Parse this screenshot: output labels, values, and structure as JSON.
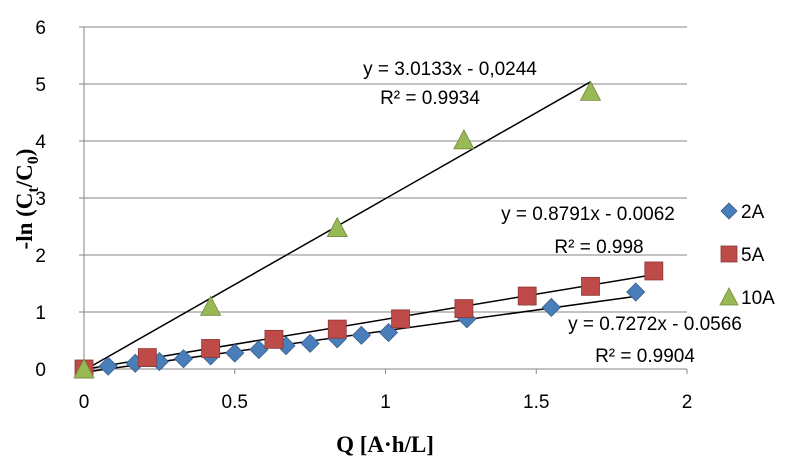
{
  "chart_data": {
    "type": "scatter",
    "xlabel": "Q [A·h/L]",
    "ylabel": "-ln (Ct/C0)",
    "ylabel_parts": {
      "pre": "-ln (C",
      "sub1": "t",
      "mid": "/C",
      "sub2": "0",
      "post": ")"
    },
    "xlim": [
      0,
      2
    ],
    "ylim": [
      0,
      6
    ],
    "xticks": [
      0,
      0.5,
      1,
      1.5,
      2
    ],
    "xtick_labels": [
      "0",
      "0.5",
      "1",
      "1.5",
      "2"
    ],
    "yticks": [
      0,
      1,
      2,
      3,
      4,
      5,
      6
    ],
    "ytick_labels": [
      "0",
      "1",
      "2",
      "3",
      "4",
      "5",
      "6"
    ],
    "grid": "horizontal",
    "legend_position": "right",
    "series": [
      {
        "name": "2A",
        "marker": "diamond",
        "color": "#4A7EBB",
        "x": [
          0,
          0.08,
          0.17,
          0.25,
          0.33,
          0.42,
          0.5,
          0.58,
          0.67,
          0.75,
          0.84,
          0.92,
          1.01,
          1.27,
          1.55,
          1.83
        ],
        "y": [
          0,
          0.05,
          0.1,
          0.13,
          0.18,
          0.23,
          0.28,
          0.34,
          0.41,
          0.45,
          0.53,
          0.59,
          0.64,
          0.88,
          1.08,
          1.35
        ],
        "trendline": {
          "slope": 0.7272,
          "intercept": -0.0566,
          "x_range": [
            0,
            1.83
          ]
        },
        "equation": "y = 0.7272x - 0.0566",
        "r2": "R² = 0.9904"
      },
      {
        "name": "5A",
        "marker": "square",
        "color": "#BE4B48",
        "x": [
          0,
          0.21,
          0.42,
          0.63,
          0.84,
          1.05,
          1.26,
          1.47,
          1.68,
          1.89
        ],
        "y": [
          0,
          0.2,
          0.36,
          0.52,
          0.7,
          0.88,
          1.06,
          1.28,
          1.45,
          1.72
        ],
        "trendline": {
          "slope": 0.8791,
          "intercept": -0.0062,
          "x_range": [
            0,
            1.89
          ]
        },
        "equation": "y = 0.8791x - 0.0062",
        "r2": "R² = 0.998"
      },
      {
        "name": "10A",
        "marker": "triangle",
        "color": "#98B954",
        "x": [
          0,
          0.42,
          0.84,
          1.26,
          1.68
        ],
        "y": [
          0,
          1.1,
          2.48,
          4.02,
          4.87
        ],
        "trendline": {
          "slope": 3.0133,
          "intercept": -0.0244,
          "x_range": [
            0,
            1.68
          ]
        },
        "equation": "y = 3.0133x - 0,0244",
        "r2": "R² = 0.9934"
      }
    ]
  }
}
